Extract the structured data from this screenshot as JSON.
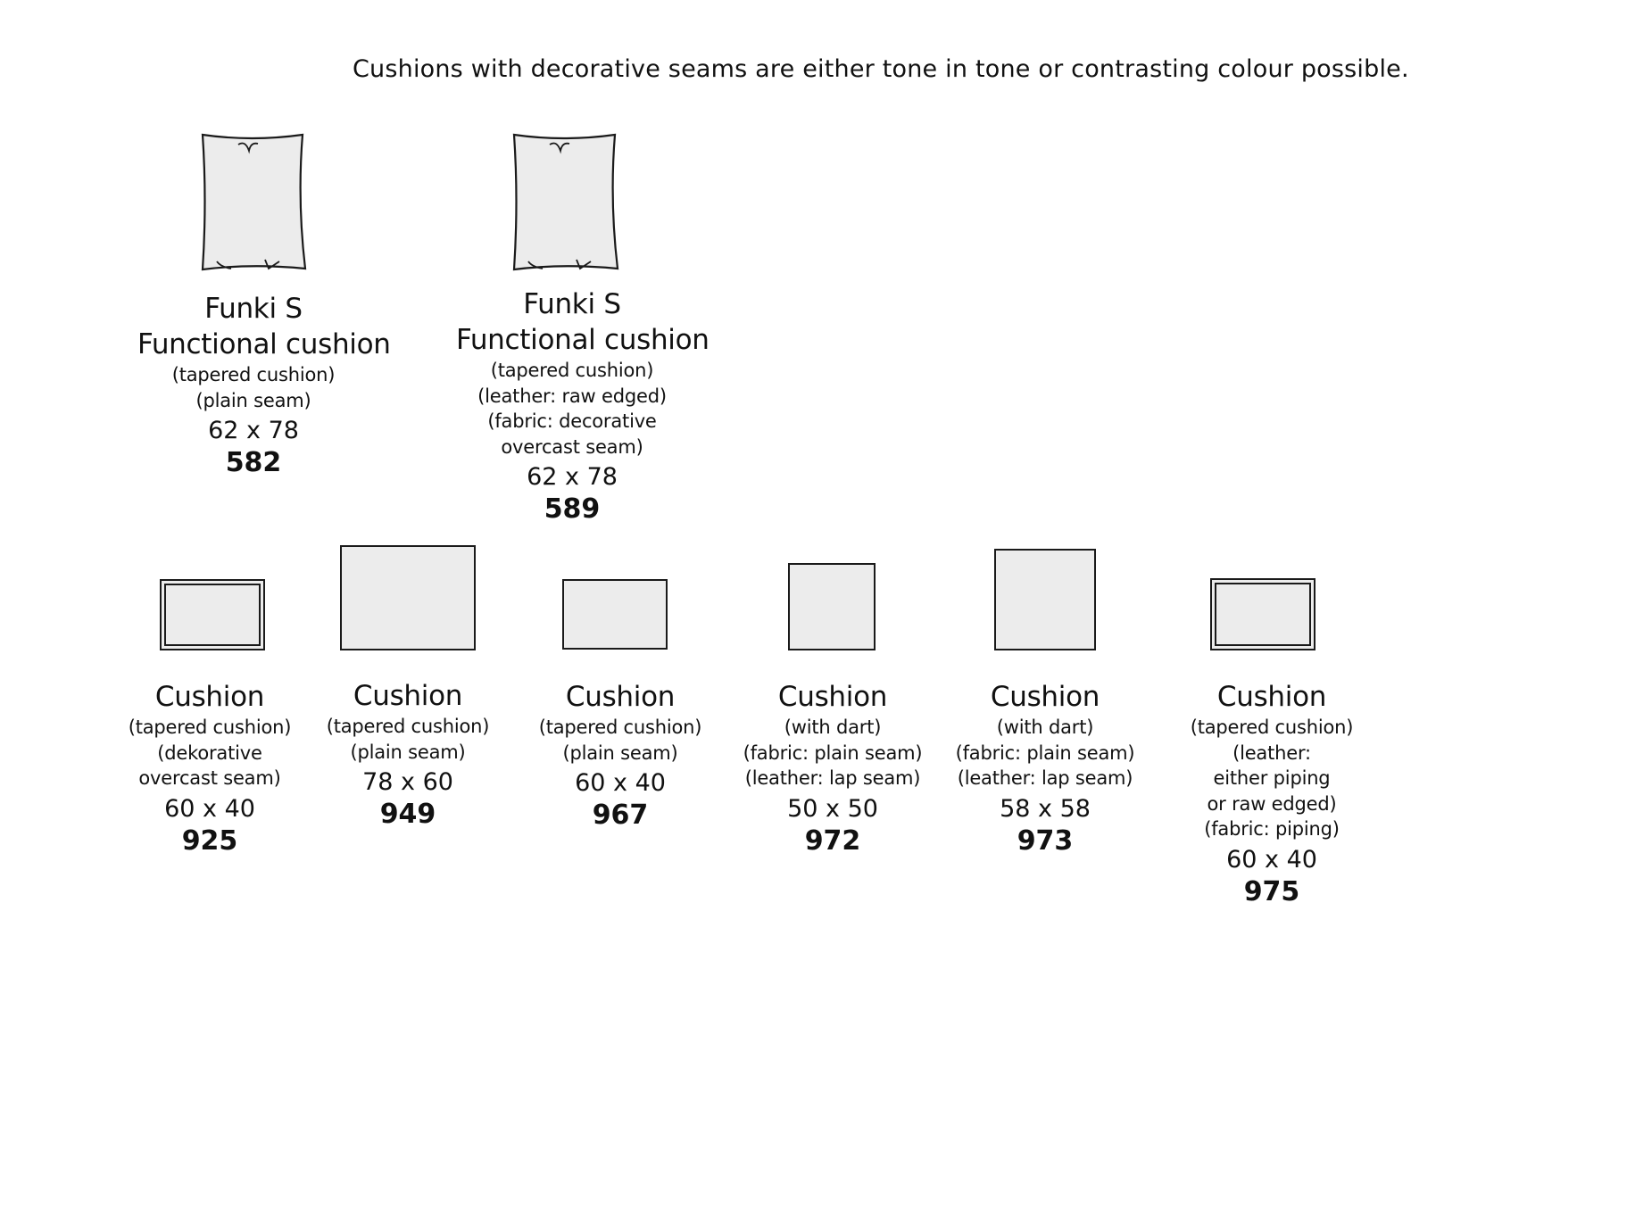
{
  "note": "Cushions with decorative seams are either tone in tone or contrasting colour possible.",
  "colors": {
    "fill": "#ececec",
    "stroke": "#1a1a1a"
  },
  "items": [
    {
      "shape": "pillow",
      "title": [
        "Funki S",
        "Functional cushion"
      ],
      "details": [
        "(tapered cushion)",
        "(plain seam)"
      ],
      "dims": "62 x 78",
      "code": "582"
    },
    {
      "shape": "pillow",
      "title": [
        "Funki S",
        "Functional cushion"
      ],
      "details": [
        "(tapered cushion)",
        "(leather: raw edged)",
        "(fabric: decorative",
        "overcast seam)"
      ],
      "dims": "62 x 78",
      "code": "589"
    },
    {
      "shape": "double-rect",
      "title": [
        "Cushion"
      ],
      "details": [
        "(tapered cushion)",
        "(dekorative",
        "overcast seam)"
      ],
      "dims": "60 x 40",
      "code": "925"
    },
    {
      "shape": "rect",
      "title": [
        "Cushion"
      ],
      "details": [
        "(tapered cushion)",
        "(plain seam)"
      ],
      "dims": "78 x 60",
      "code": "949"
    },
    {
      "shape": "rect",
      "title": [
        "Cushion"
      ],
      "details": [
        "(tapered cushion)",
        "(plain seam)"
      ],
      "dims": "60 x 40",
      "code": "967"
    },
    {
      "shape": "rect",
      "title": [
        "Cushion"
      ],
      "details": [
        "(with dart)",
        "(fabric: plain seam)",
        "(leather: lap seam)"
      ],
      "dims": "50 x 50",
      "code": "972"
    },
    {
      "shape": "rect",
      "title": [
        "Cushion"
      ],
      "details": [
        "(with dart)",
        "(fabric: plain seam)",
        "(leather: lap seam)"
      ],
      "dims": "58 x 58",
      "code": "973"
    },
    {
      "shape": "double-rect",
      "title": [
        "Cushion"
      ],
      "details": [
        "(tapered cushion)",
        "(leather:",
        "either piping",
        "or raw edged)",
        "(fabric: piping)"
      ],
      "dims": "60 x 40",
      "code": "975"
    }
  ]
}
